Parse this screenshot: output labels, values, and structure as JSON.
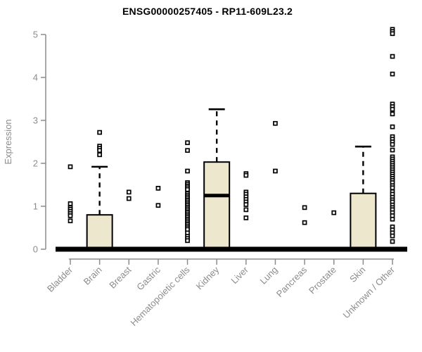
{
  "header": {
    "title": "ENSG00000257405 - RP11-609L23.2"
  },
  "chart_data": {
    "type": "boxplot",
    "title": "ENSG00000257405 - RP11-609L23.2",
    "xlabel": "",
    "ylabel": "Expression",
    "ylim": [
      0,
      5.2
    ],
    "yticks": [
      0,
      1,
      2,
      3,
      4,
      5
    ],
    "grid": false,
    "legend": "none",
    "categories": [
      "Bladder",
      "Brain",
      "Breast",
      "Gastric",
      "Hematopoietic cells",
      "Kidney",
      "Liver",
      "Lung",
      "Pancreas",
      "Prostate",
      "Skin",
      "Unknown / Other"
    ],
    "series": [
      {
        "category": "Bladder",
        "q1": 0,
        "median": 0,
        "q3": 0,
        "whisker_low": 0,
        "whisker_high": 0,
        "outliers": [
          1.92,
          1.06,
          0.97,
          0.93,
          0.88,
          0.83,
          0.78,
          0.66
        ]
      },
      {
        "category": "Brain",
        "q1": 0,
        "median": 0.02,
        "q3": 0.8,
        "whisker_low": 0,
        "whisker_high": 1.92,
        "outliers": [
          2.72,
          2.4,
          2.35,
          2.3,
          2.2
        ]
      },
      {
        "category": "Breast",
        "q1": 0,
        "median": 0,
        "q3": 0,
        "whisker_low": 0,
        "whisker_high": 0,
        "outliers": [
          1.33,
          1.18
        ]
      },
      {
        "category": "Gastric",
        "q1": 0,
        "median": 0,
        "q3": 0,
        "whisker_low": 0,
        "whisker_high": 0,
        "outliers": [
          1.42,
          1.02
        ]
      },
      {
        "category": "Hematopoietic cells",
        "q1": 0,
        "median": 0,
        "q3": 0,
        "whisker_low": 0,
        "whisker_high": 0,
        "outliers": [
          2.48,
          2.3,
          1.82,
          1.55,
          1.51,
          1.47,
          1.43,
          1.39,
          1.3,
          1.26,
          1.22,
          1.18,
          1.14,
          1.1,
          1.06,
          1.02,
          0.98,
          0.94,
          0.9,
          0.86,
          0.82,
          0.78,
          0.74,
          0.7,
          0.66,
          0.62,
          0.58,
          0.54,
          0.5,
          0.46,
          0.38,
          0.3,
          0.25,
          0.2
        ]
      },
      {
        "category": "Kidney",
        "q1": 0.02,
        "median": 1.25,
        "q3": 2.03,
        "whisker_low": 0,
        "whisker_high": 3.26,
        "outliers": []
      },
      {
        "category": "Liver",
        "q1": 0,
        "median": 0,
        "q3": 0,
        "whisker_low": 0,
        "whisker_high": 0,
        "outliers": [
          1.76,
          1.72,
          1.33,
          1.28,
          1.22,
          1.16,
          1.1,
          1.04,
          0.92,
          0.73
        ]
      },
      {
        "category": "Lung",
        "q1": 0,
        "median": 0,
        "q3": 0,
        "whisker_low": 0,
        "whisker_high": 0,
        "outliers": [
          2.93,
          1.82
        ]
      },
      {
        "category": "Pancreas",
        "q1": 0,
        "median": 0,
        "q3": 0,
        "whisker_low": 0,
        "whisker_high": 0,
        "outliers": [
          0.97,
          0.62
        ]
      },
      {
        "category": "Prostate",
        "q1": 0,
        "median": 0,
        "q3": 0,
        "whisker_low": 0,
        "whisker_high": 0,
        "outliers": [
          0.85
        ]
      },
      {
        "category": "Skin",
        "q1": 0.02,
        "median": 0.02,
        "q3": 1.3,
        "whisker_low": 0,
        "whisker_high": 2.39,
        "outliers": []
      },
      {
        "category": "Unknown / Other",
        "q1": 0,
        "median": 0,
        "q3": 0,
        "whisker_low": 0,
        "whisker_high": 0,
        "outliers": [
          5.12,
          5.07,
          5.02,
          4.49,
          4.08,
          3.38,
          3.32,
          3.26,
          3.15,
          2.85,
          2.62,
          2.56,
          2.5,
          2.44,
          2.31,
          2.15,
          2.1,
          2.05,
          2.0,
          1.95,
          1.9,
          1.85,
          1.8,
          1.75,
          1.7,
          1.65,
          1.6,
          1.55,
          1.48,
          1.43,
          1.34,
          1.28,
          1.21,
          1.15,
          1.1,
          1.03,
          0.97,
          0.92,
          0.85,
          0.78,
          0.7,
          0.52,
          0.45,
          0.38,
          0.31,
          0.18
        ]
      }
    ],
    "colors": {
      "box_fill": "#ece7cd",
      "box_border": "#000000",
      "median": "#000000",
      "whisker": "#000000",
      "outlier": "#000000",
      "axis": "#8c8c8c",
      "tick_label": "#8c8c8c",
      "title": "#000000",
      "background": "#ffffff"
    }
  }
}
